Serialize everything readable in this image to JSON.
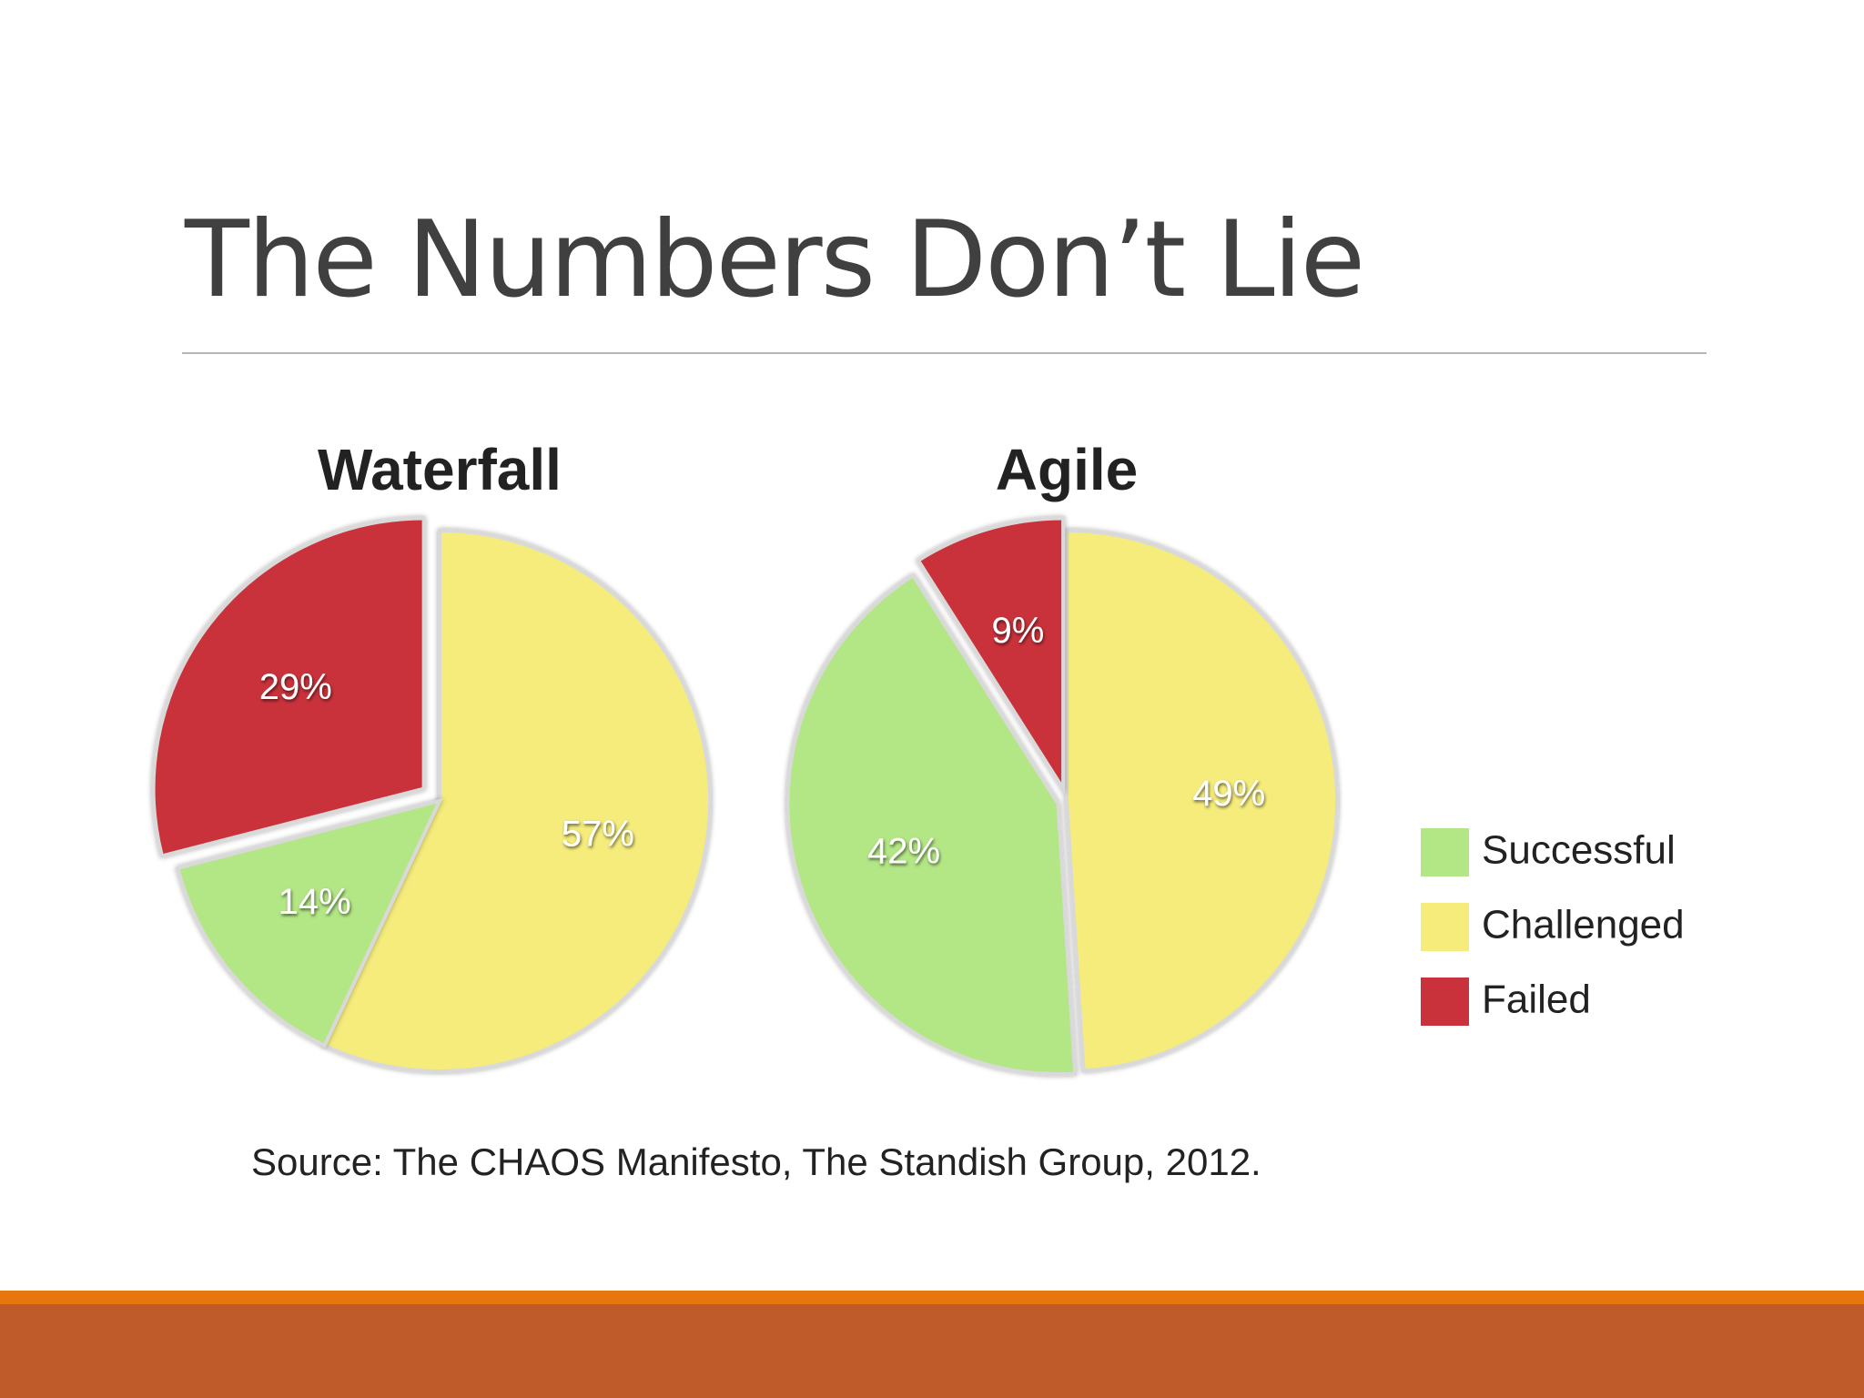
{
  "slide": {
    "title": "The Numbers Don’t Lie",
    "source": "Source: The CHAOS Manifesto, The Standish Group, 2012."
  },
  "colors": {
    "Successful": "#b3e685",
    "Challenged": "#f5ec7c",
    "Failed": "#c9313b",
    "footer_stripe": "#e8760f",
    "footer_bar": "#bf5a2b"
  },
  "chart_data": [
    {
      "type": "pie",
      "title": "Waterfall",
      "categories": [
        "Challenged",
        "Successful",
        "Failed"
      ],
      "values": [
        57,
        14,
        29
      ],
      "labels": [
        "57%",
        "14%",
        "29%"
      ],
      "legend": "none"
    },
    {
      "type": "pie",
      "title": "Agile",
      "categories": [
        "Challenged",
        "Successful",
        "Failed"
      ],
      "values": [
        49,
        42,
        9
      ],
      "labels": [
        "49%",
        "42%",
        "9%"
      ],
      "legend": "right",
      "legend_entries": [
        "Successful",
        "Challenged",
        "Failed"
      ]
    }
  ]
}
